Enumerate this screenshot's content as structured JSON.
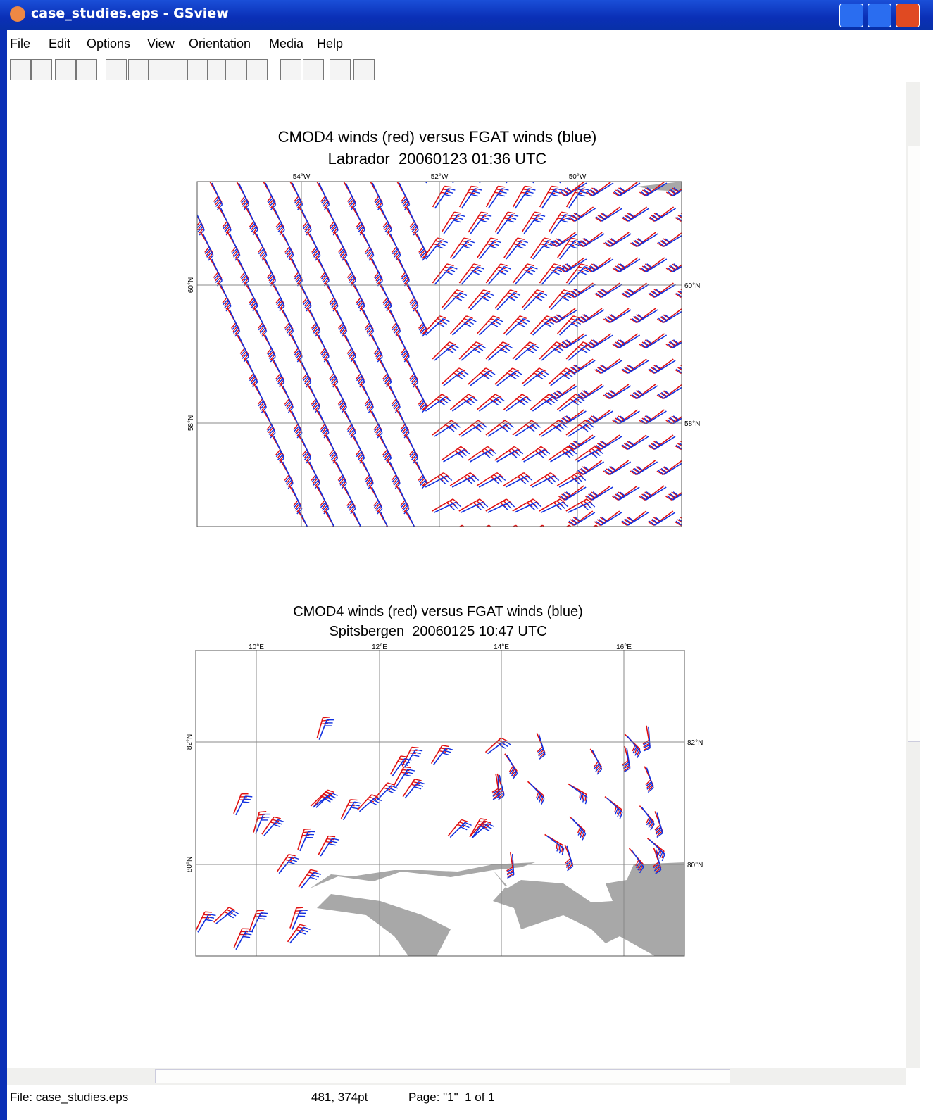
{
  "window": {
    "title": "case_studies.eps - GSview"
  },
  "menu": [
    "File",
    "Edit",
    "Options",
    "View",
    "Orientation",
    "Media",
    "Help"
  ],
  "maps": [
    {
      "title": "CMOD4 winds (red) versus FGAT winds (blue)",
      "subtitle": "Labrador  20060123 01:36 UTC",
      "lon_labels": [
        "54°W",
        "52°W",
        "50°W"
      ],
      "lat_labels": [
        "60°N",
        "58°N"
      ]
    },
    {
      "title": "CMOD4 winds (red) versus FGAT winds (blue)",
      "subtitle": "Spitsbergen  20060125 10:47 UTC",
      "lon_labels": [
        "10°E",
        "12°E",
        "14°E",
        "16°E"
      ],
      "lat_labels": [
        "82°N",
        "80°N"
      ]
    }
  ],
  "status": {
    "file": "File: case_studies.eps",
    "position": "481, 374pt",
    "page": "Page: \"1\"  1 of 1"
  }
}
